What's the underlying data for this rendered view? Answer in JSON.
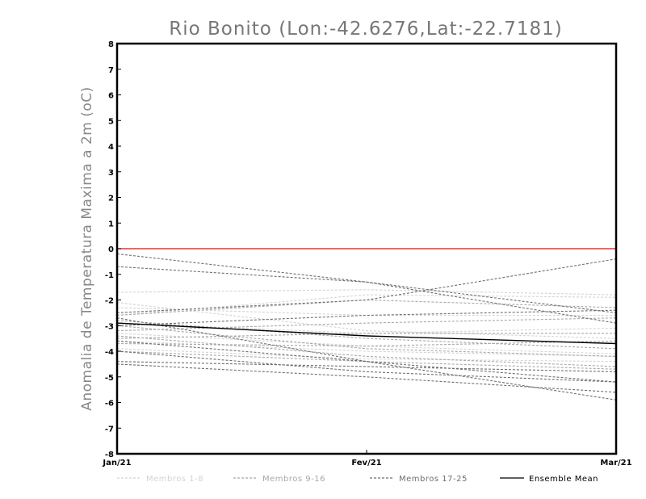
{
  "chart_data": {
    "type": "line",
    "title": "Rio Bonito (Lon:-42.6276,Lat:-22.7181)",
    "ylabel": "Anomalia de Temperatura Maxima a 2m (oC)",
    "xlabel": "",
    "x": [
      "Jan/21",
      "Fev/21",
      "Mar/21"
    ],
    "ylim": [
      -8,
      8
    ],
    "yticks": [
      -8,
      -7,
      -6,
      -5,
      -4,
      -3,
      -2,
      -1,
      0,
      1,
      2,
      3,
      4,
      5,
      6,
      7,
      8
    ],
    "reference_line": {
      "value": 0,
      "color": "#ee3333"
    },
    "series": [
      {
        "name": "Membros 1-8",
        "group": 0,
        "values": [
          -1.7,
          -1.6,
          -1.8
        ]
      },
      {
        "name": "Membros 1-8",
        "group": 0,
        "values": [
          -2.1,
          -3.2,
          -3.5
        ]
      },
      {
        "name": "Membros 1-8",
        "group": 0,
        "values": [
          -2.3,
          -2.6,
          -2.6
        ]
      },
      {
        "name": "Membros 1-8",
        "group": 0,
        "values": [
          -2.9,
          -3.3,
          -3.1
        ]
      },
      {
        "name": "Membros 1-8",
        "group": 0,
        "values": [
          -3.3,
          -3.8,
          -4.1
        ]
      },
      {
        "name": "Membros 1-8",
        "group": 0,
        "values": [
          -3.6,
          -4.0,
          -4.2
        ]
      },
      {
        "name": "Membros 1-8",
        "group": 0,
        "values": [
          -3.9,
          -4.3,
          -4.4
        ]
      },
      {
        "name": "Membros 1-8",
        "group": 0,
        "values": [
          -2.6,
          -1.8,
          -1.9
        ]
      },
      {
        "name": "Membros 9-16",
        "group": 1,
        "values": [
          -2.6,
          -2.0,
          -2.3
        ]
      },
      {
        "name": "Membros 9-16",
        "group": 1,
        "values": [
          -3.0,
          -3.9,
          -4.2
        ]
      },
      {
        "name": "Membros 9-16",
        "group": 1,
        "values": [
          -3.4,
          -4.2,
          -4.6
        ]
      },
      {
        "name": "Membros 9-16",
        "group": 1,
        "values": [
          -3.7,
          -3.8,
          -3.6
        ]
      },
      {
        "name": "Membros 9-16",
        "group": 1,
        "values": [
          -4.0,
          -4.4,
          -4.7
        ]
      },
      {
        "name": "Membros 9-16",
        "group": 1,
        "values": [
          -3.5,
          -3.3,
          -3.3
        ]
      },
      {
        "name": "Membros 9-16",
        "group": 1,
        "values": [
          -2.8,
          -3.5,
          -3.9
        ]
      },
      {
        "name": "Membros 9-16",
        "group": 1,
        "values": [
          -3.2,
          -2.9,
          -2.7
        ]
      },
      {
        "name": "Membros 17-25",
        "group": 2,
        "values": [
          -0.2,
          -1.3,
          -2.5
        ]
      },
      {
        "name": "Membros 17-25",
        "group": 2,
        "values": [
          -0.7,
          -1.3,
          -2.9
        ]
      },
      {
        "name": "Membros 17-25",
        "group": 2,
        "values": [
          -2.5,
          -2.0,
          -0.4
        ]
      },
      {
        "name": "Membros 17-25",
        "group": 2,
        "values": [
          -2.7,
          -4.4,
          -5.2
        ]
      },
      {
        "name": "Membros 17-25",
        "group": 2,
        "values": [
          -4.0,
          -4.8,
          -5.2
        ]
      },
      {
        "name": "Membros 17-25",
        "group": 2,
        "values": [
          -4.5,
          -5.0,
          -5.6
        ]
      },
      {
        "name": "Membros 17-25",
        "group": 2,
        "values": [
          -4.4,
          -4.6,
          -4.8
        ]
      },
      {
        "name": "Membros 17-25",
        "group": 2,
        "values": [
          -3.6,
          -4.4,
          -5.9
        ]
      },
      {
        "name": "Membros 17-25",
        "group": 2,
        "values": [
          -3.0,
          -2.6,
          -2.4
        ]
      },
      {
        "name": "Ensemble Mean",
        "group": 3,
        "values": [
          -2.9,
          -3.4,
          -3.7
        ]
      }
    ],
    "legend": [
      {
        "label": "Membros 1-8",
        "color": "#d4d4d4",
        "style": "dashed"
      },
      {
        "label": "Membros 9-16",
        "color": "#a8a8a8",
        "style": "dashed"
      },
      {
        "label": "Membros 17-25",
        "color": "#6e6e6e",
        "style": "dashed"
      },
      {
        "label": "Ensemble Mean",
        "color": "#000000",
        "style": "solid"
      }
    ],
    "legend_position": "bottom"
  }
}
